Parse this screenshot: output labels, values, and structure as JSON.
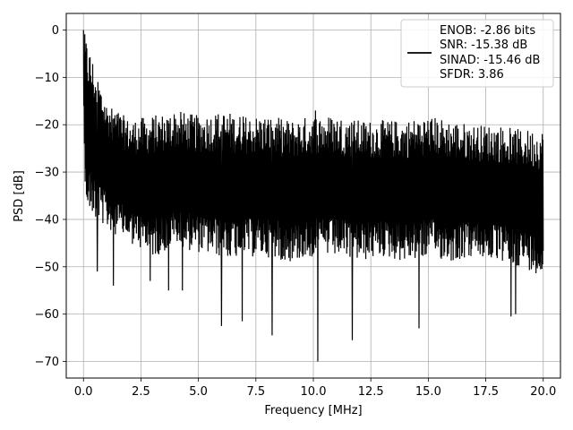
{
  "chart_data": {
    "type": "line",
    "title": "",
    "xlabel": "Frequency [MHz]",
    "ylabel": "PSD [dB]",
    "xlim": [
      -0.75,
      20.75
    ],
    "ylim": [
      -73.5,
      3.5
    ],
    "xticks": [
      0.0,
      2.5,
      5.0,
      7.5,
      10.0,
      12.5,
      15.0,
      17.5,
      20.0
    ],
    "xtick_labels": [
      "0.0",
      "2.5",
      "5.0",
      "7.5",
      "10.0",
      "12.5",
      "15.0",
      "17.5",
      "20.0"
    ],
    "yticks": [
      0,
      -10,
      -20,
      -30,
      -40,
      -50,
      -60,
      -70
    ],
    "ytick_labels": [
      "0",
      "−10",
      "−20",
      "−30",
      "−40",
      "−50",
      "−60",
      "−70"
    ],
    "grid": true,
    "line_color": "#000000",
    "legend": {
      "placement": "top-right",
      "entries": [
        "ENOB: -2.86 bits",
        "SNR: -15.38 dB",
        "SINAD: -15.46 dB",
        "SFDR: 3.86"
      ]
    },
    "series": [
      {
        "x_start": 0.0,
        "x_end": 20.0,
        "envelope_top": [
          0.0,
          -15,
          -19,
          -18,
          -17,
          -18,
          -17,
          -18,
          -18,
          -19,
          -18,
          -18,
          -19,
          -19,
          -19,
          -18,
          -19,
          -20,
          -20,
          -21,
          -21
        ],
        "envelope_bottom": [
          -37,
          -42,
          -45,
          -48,
          -46,
          -47,
          -48,
          -48,
          -48,
          -49,
          -48,
          -48,
          -49,
          -48,
          -49,
          -48,
          -49,
          -48,
          -49,
          -50,
          -52
        ],
        "spikes": [
          {
            "x": 0.0,
            "y": 0.0
          },
          {
            "x": 0.6,
            "y": -51.0
          },
          {
            "x": 1.3,
            "y": -54.0
          },
          {
            "x": 2.9,
            "y": -53.0
          },
          {
            "x": 3.7,
            "y": -55.0
          },
          {
            "x": 4.3,
            "y": -55.0
          },
          {
            "x": 6.0,
            "y": -62.5
          },
          {
            "x": 6.9,
            "y": -61.5
          },
          {
            "x": 8.2,
            "y": -64.5
          },
          {
            "x": 10.1,
            "y": -17.0
          },
          {
            "x": 10.2,
            "y": -70.0
          },
          {
            "x": 11.7,
            "y": -65.5
          },
          {
            "x": 14.6,
            "y": -63.0
          },
          {
            "x": 18.6,
            "y": -60.5
          },
          {
            "x": 18.8,
            "y": -60.0
          }
        ]
      }
    ]
  }
}
